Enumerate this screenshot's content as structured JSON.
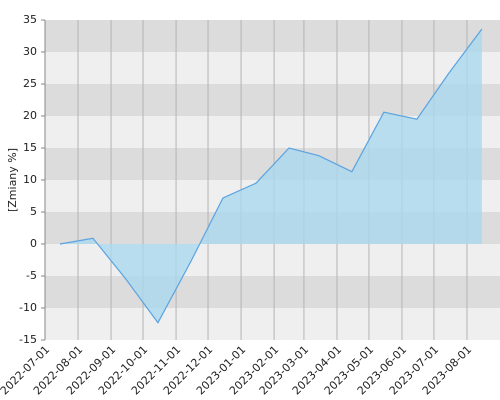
{
  "chart_data": {
    "type": "area",
    "y_label": "[Zmiany %]",
    "x": [
      "2022-07-15",
      "2022-08-15",
      "2022-09-15",
      "2022-10-15",
      "2022-11-15",
      "2022-12-15",
      "2023-01-15",
      "2023-02-15",
      "2023-03-15",
      "2023-04-15",
      "2023-05-15",
      "2023-06-15",
      "2023-07-15",
      "2023-08-15"
    ],
    "series": [
      {
        "name": "Zmiany",
        "color": "#5ba3e0",
        "fill": "#a9d8ee",
        "values": [
          0,
          0.9,
          -5.5,
          -12.3,
          -2.7,
          7.2,
          9.5,
          15,
          13.8,
          11.3,
          20.6,
          19.5,
          26.7,
          33.6
        ]
      }
    ],
    "xlim": [
      "2022-07-01",
      "2023-09-01"
    ],
    "xticks": [
      "2022-07-01",
      "2022-08-01",
      "2022-09-01",
      "2022-10-01",
      "2022-11-01",
      "2022-12-01",
      "2023-01-01",
      "2023-02-01",
      "2023-03-01",
      "2023-04-01",
      "2023-05-01",
      "2023-06-01",
      "2023-07-01",
      "2023-08-01"
    ],
    "ylim": [
      -15,
      35
    ],
    "yticks": [
      -15,
      -10,
      -5,
      0,
      5,
      10,
      15,
      20,
      25,
      30,
      35
    ],
    "band_colors": [
      "#dcdcdc",
      "#efefef"
    ],
    "grid": true
  }
}
